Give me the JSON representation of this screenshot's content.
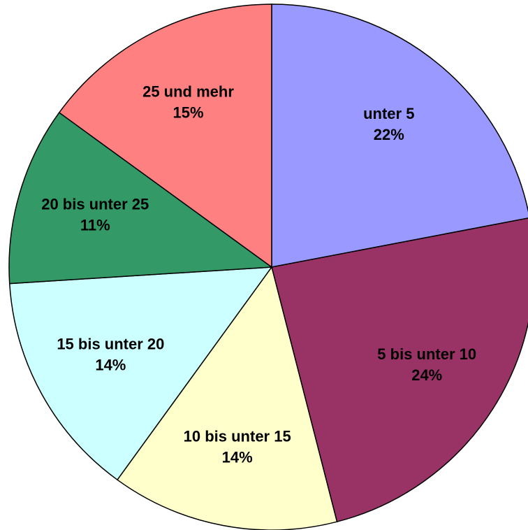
{
  "chart_data": {
    "type": "pie",
    "categories": [
      "unter 5",
      "5 bis unter 10",
      "10 bis unter 15",
      "15 bis unter 20",
      "20 bis unter 25",
      "25 und mehr"
    ],
    "values": [
      22,
      24,
      14,
      14,
      11,
      15
    ],
    "value_labels": [
      "22%",
      "24%",
      "14%",
      "14%",
      "11%",
      "15%"
    ],
    "colors": [
      "#9999ff",
      "#993366",
      "#ffffcc",
      "#ccffff",
      "#339966",
      "#ff8080"
    ]
  }
}
